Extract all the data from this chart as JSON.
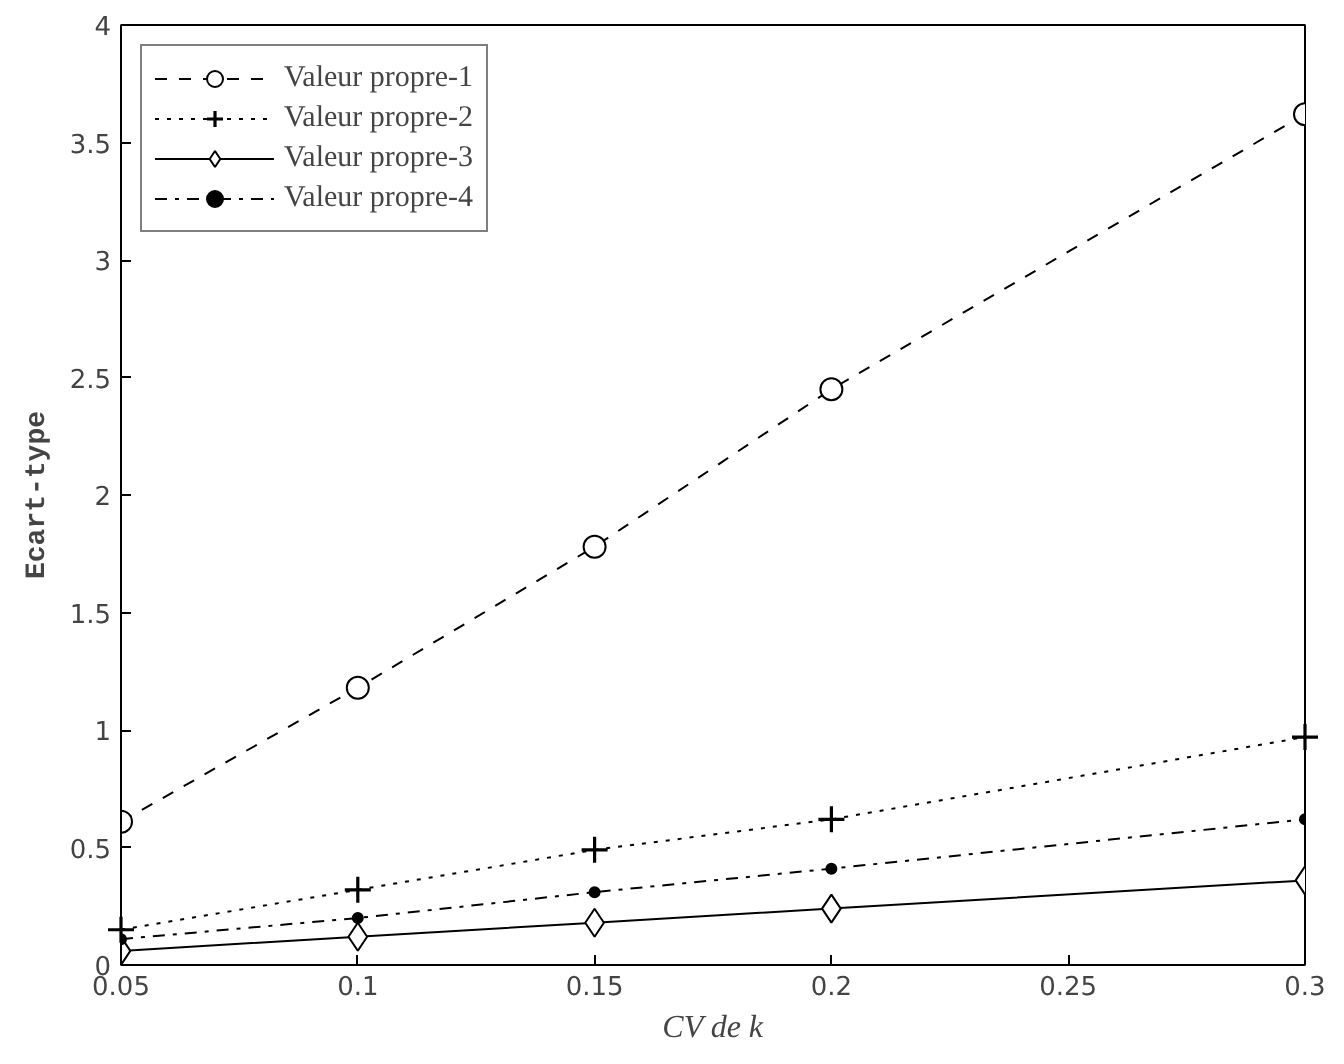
{
  "chart_data": {
    "type": "line",
    "xlabel": "CV de k",
    "ylabel": "Ecart-type",
    "x": [
      0.05,
      0.1,
      0.15,
      0.2,
      0.3
    ],
    "series": [
      {
        "name": "Valeur propre-1",
        "color": "#000000",
        "marker": "circle",
        "line_style": "dashed",
        "values": [
          0.61,
          1.18,
          1.78,
          2.45,
          3.62
        ]
      },
      {
        "name": "Valeur propre-2",
        "color": "#000000",
        "marker": "cross",
        "line_style": "dotted",
        "values": [
          0.15,
          0.32,
          0.49,
          0.62,
          0.97
        ]
      },
      {
        "name": "Valeur propre-3",
        "color": "#000000",
        "marker": "diamond",
        "line_style": "solid",
        "values": [
          0.06,
          0.12,
          0.18,
          0.24,
          0.36
        ]
      },
      {
        "name": "Valeur propre-4",
        "color": "#000000",
        "marker": "dot",
        "line_style": "dashdot",
        "values": [
          0.11,
          0.2,
          0.31,
          0.41,
          0.62
        ]
      }
    ],
    "xlim": [
      0.05,
      0.3
    ],
    "xticks": [
      0.05,
      0.1,
      0.15,
      0.2,
      0.25,
      0.3
    ],
    "ylim": [
      0,
      4
    ],
    "yticks": [
      0,
      0.5,
      1,
      1.5,
      2,
      2.5,
      3,
      3.5,
      4
    ],
    "grid": false,
    "legend": "top left"
  }
}
